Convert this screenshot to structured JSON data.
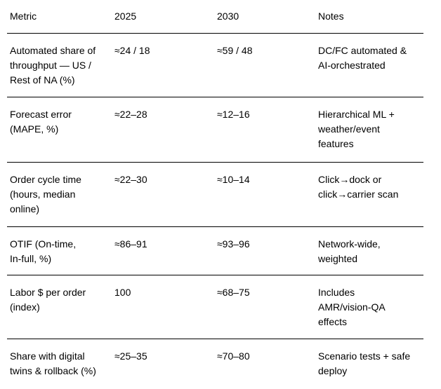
{
  "table": {
    "columns": [
      "Metric",
      "2025",
      "2030",
      "Notes"
    ],
    "rows": [
      [
        "Automated share of\nthroughput — US /\nRest of NA (%)",
        "≈24 / 18",
        "≈59 / 48",
        "DC/FC automated &\nAI-orchestrated"
      ],
      [
        "Forecast error\n(MAPE, %)",
        "≈22–28",
        "≈12–16",
        "Hierarchical ML +\nweather/event\nfeatures"
      ],
      [
        "Order cycle time\n(hours, median\nonline)",
        "≈22–30",
        "≈10–14",
        "Click→dock or\nclick→carrier scan"
      ],
      [
        "OTIF (On-time,\nIn-full, %)",
        "≈86–91",
        "≈93–96",
        "Network-wide,\nweighted"
      ],
      [
        "Labor $ per order\n(index)",
        "100",
        "≈68–75",
        "Includes\nAMR/vision-QA\neffects"
      ],
      [
        "Share with digital\ntwins & rollback (%)",
        "≈25–35",
        "≈70–80",
        "Scenario tests + safe\ndeploy"
      ]
    ]
  }
}
